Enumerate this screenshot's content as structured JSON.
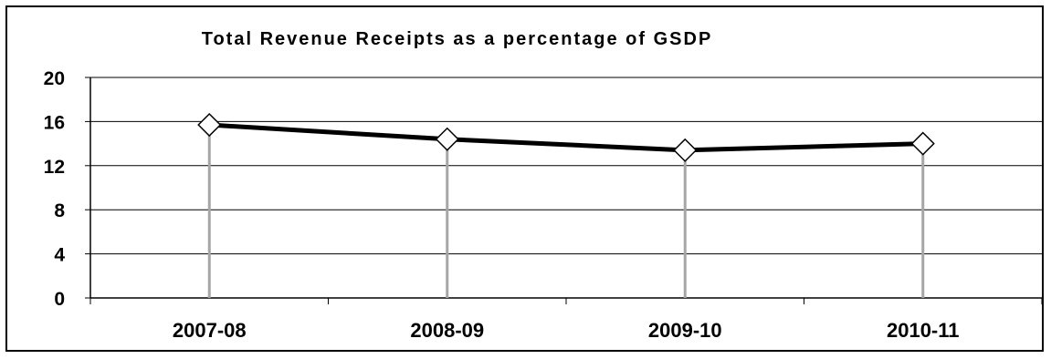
{
  "chart_data": {
    "type": "line",
    "title": "Total Revenue Receipts as a percentage of GSDP",
    "xlabel": "",
    "ylabel": "",
    "categories": [
      "2007-08",
      "2008-09",
      "2009-10",
      "2010-11"
    ],
    "series": [
      {
        "values": [
          15.7,
          14.4,
          13.4,
          14.0
        ]
      }
    ],
    "ylim": [
      0,
      20
    ],
    "yticks": [
      "0",
      "4",
      "8",
      "12",
      "16",
      "20"
    ],
    "grid": "horizontal",
    "legend": "none",
    "colors": {
      "line": "#000000",
      "drop_line": "#a6a6a6",
      "grid": "#000000",
      "marker_fill": "#ffffff"
    }
  }
}
